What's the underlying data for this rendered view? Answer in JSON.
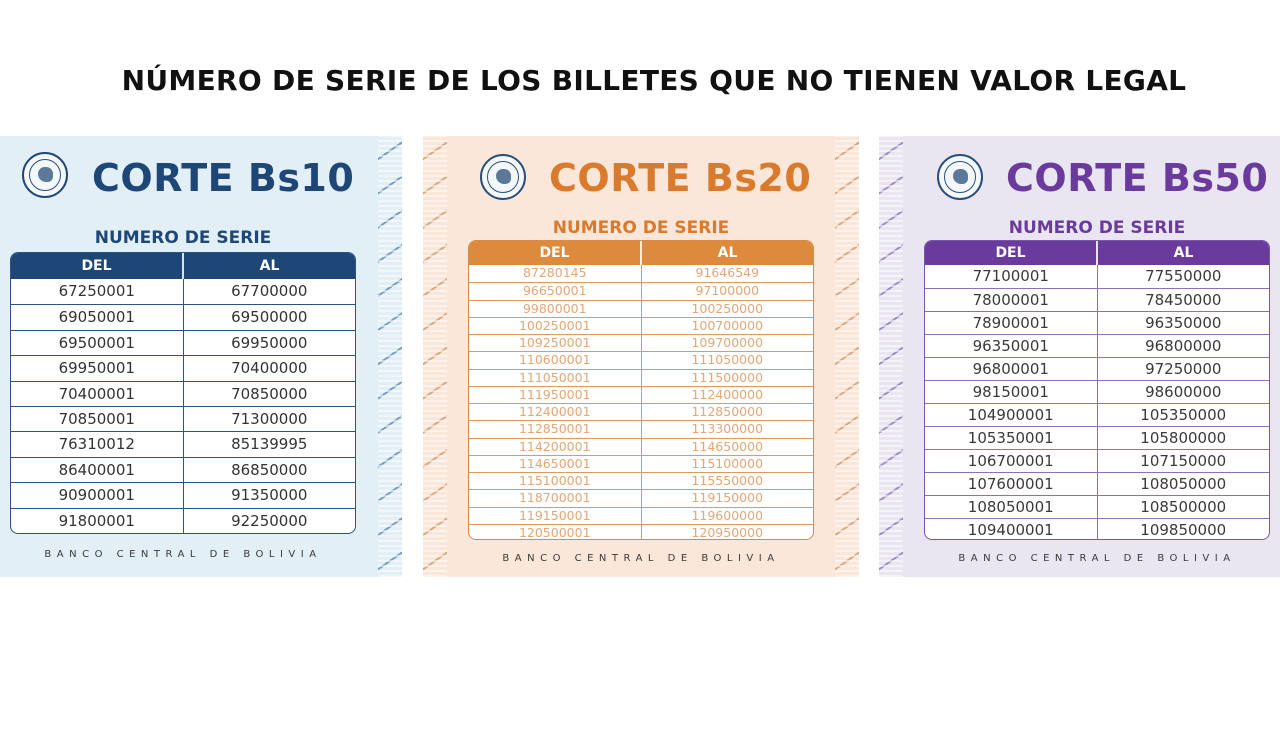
{
  "title": "NÚMERO DE SERIE DE LOS BILLETES QUE NO TIENEN VALOR LEGAL",
  "icons": {
    "seal": "bank-seal-icon"
  },
  "colors": {
    "bs10": "#1e4677",
    "bs20": "#d97a2c",
    "bs50": "#6a3b9c"
  },
  "cards": [
    {
      "title": "CORTE Bs10",
      "subtitle": "NUMERO DE SERIE",
      "col_del": "DEL",
      "col_al": "AL",
      "footer": "BANCO CENTRAL DE BOLIVIA",
      "rows": [
        [
          "67250001",
          "67700000"
        ],
        [
          "69050001",
          "69500000"
        ],
        [
          "69500001",
          "69950000"
        ],
        [
          "69950001",
          "70400000"
        ],
        [
          "70400001",
          "70850000"
        ],
        [
          "70850001",
          "71300000"
        ],
        [
          "76310012",
          "85139995"
        ],
        [
          "86400001",
          "86850000"
        ],
        [
          "90900001",
          "91350000"
        ],
        [
          "91800001",
          "92250000"
        ]
      ]
    },
    {
      "title": "CORTE Bs20",
      "subtitle": "NUMERO DE SERIE",
      "col_del": "DEL",
      "col_al": "AL",
      "footer": "BANCO CENTRAL DE BOLIVIA",
      "rows": [
        [
          "87280145",
          "91646549"
        ],
        [
          "96650001",
          "97100000"
        ],
        [
          "99800001",
          "100250000"
        ],
        [
          "100250001",
          "100700000"
        ],
        [
          "109250001",
          "109700000"
        ],
        [
          "110600001",
          "111050000"
        ],
        [
          "111050001",
          "111500000"
        ],
        [
          "111950001",
          "112400000"
        ],
        [
          "112400001",
          "112850000"
        ],
        [
          "112850001",
          "113300000"
        ],
        [
          "114200001",
          "114650000"
        ],
        [
          "114650001",
          "115100000"
        ],
        [
          "115100001",
          "115550000"
        ],
        [
          "118700001",
          "119150000"
        ],
        [
          "119150001",
          "119600000"
        ],
        [
          "120500001",
          "120950000"
        ]
      ]
    },
    {
      "title": "CORTE Bs50",
      "subtitle": "NUMERO DE SERIE",
      "col_del": "DEL",
      "col_al": "AL",
      "footer": "BANCO CENTRAL DE BOLIVIA",
      "rows": [
        [
          "77100001",
          "77550000"
        ],
        [
          "78000001",
          "78450000"
        ],
        [
          "78900001",
          "96350000"
        ],
        [
          "96350001",
          "96800000"
        ],
        [
          "96800001",
          "97250000"
        ],
        [
          "98150001",
          "98600000"
        ],
        [
          "104900001",
          "105350000"
        ],
        [
          "105350001",
          "105800000"
        ],
        [
          "106700001",
          "107150000"
        ],
        [
          "107600001",
          "108050000"
        ],
        [
          "108050001",
          "108500000"
        ],
        [
          "109400001",
          "109850000"
        ]
      ]
    }
  ]
}
